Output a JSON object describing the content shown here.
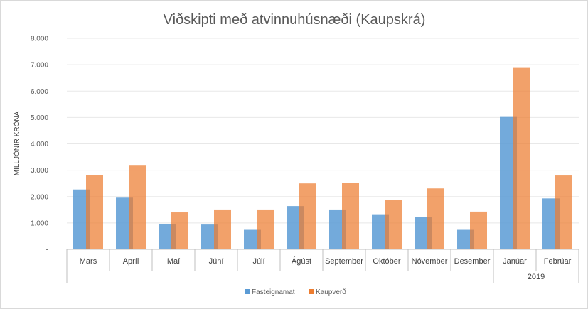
{
  "chart_data": {
    "type": "bar",
    "title": "Viðskipti með atvinnuhúsnæði (Kaupskrá)",
    "ylabel": "MILLJÓNIR KRÓNA",
    "xlabel": "",
    "ylim": [
      0,
      8000
    ],
    "yticks": [
      {
        "value": 0,
        "label": "-"
      },
      {
        "value": 1000,
        "label": "1.000"
      },
      {
        "value": 2000,
        "label": "2.000"
      },
      {
        "value": 3000,
        "label": "3.000"
      },
      {
        "value": 4000,
        "label": "4.000"
      },
      {
        "value": 5000,
        "label": "5.000"
      },
      {
        "value": 6000,
        "label": "6.000"
      },
      {
        "value": 7000,
        "label": "7.000"
      },
      {
        "value": 8000,
        "label": "8.000"
      }
    ],
    "categories": [
      "Mars",
      "Apríl",
      "Maí",
      "Júní",
      "Júlí",
      "Ágúst",
      "September",
      "Október",
      "Nóvember",
      "Desember",
      "Janúar",
      "Febrúar"
    ],
    "category_groups": [
      {
        "label": "",
        "start": 0,
        "end": 9
      },
      {
        "label": "2019",
        "start": 10,
        "end": 11
      }
    ],
    "series": [
      {
        "name": "Fasteignamat",
        "color": "#5b9bd5",
        "values": [
          2270,
          1960,
          970,
          940,
          740,
          1640,
          1510,
          1330,
          1220,
          740,
          5020,
          1930
        ]
      },
      {
        "name": "Kaupverð",
        "color": "#ed7d31",
        "values": [
          2820,
          3200,
          1400,
          1510,
          1510,
          2500,
          2530,
          1880,
          2310,
          1430,
          6880,
          2800
        ]
      }
    ],
    "legend_position": "bottom",
    "grid": true
  }
}
